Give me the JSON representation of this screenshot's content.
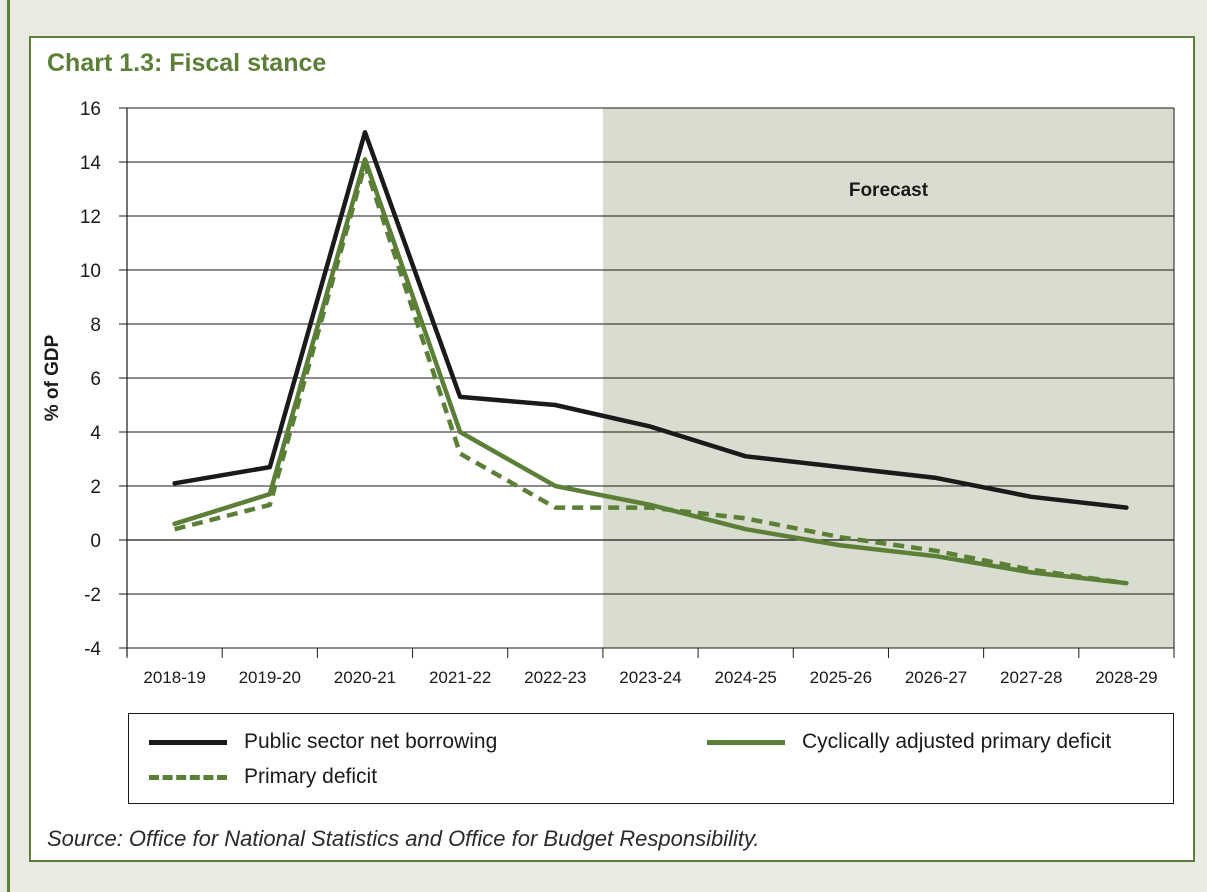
{
  "chart_data": {
    "type": "line",
    "title": "Chart 1.3: Fiscal stance",
    "ylabel": "% of GDP",
    "xlabel": "",
    "ylim": [
      -4,
      16
    ],
    "yticks": [
      "-4",
      "-2",
      "0",
      "2",
      "4",
      "6",
      "8",
      "10",
      "12",
      "14",
      "16"
    ],
    "categories": [
      "2018-19",
      "2019-20",
      "2020-21",
      "2021-22",
      "2022-23",
      "2023-24",
      "2024-25",
      "2025-26",
      "2026-27",
      "2027-28",
      "2028-29"
    ],
    "grid": true,
    "forecast_region": {
      "label": "Forecast",
      "from_category": "2023-24",
      "to_category": "2028-29",
      "color": "#d9ddcf"
    },
    "series": [
      {
        "name": "Public sector net borrowing",
        "color": "#1a1a1a",
        "dash": "solid",
        "values": [
          2.1,
          2.7,
          15.1,
          5.3,
          5.0,
          4.2,
          3.1,
          2.7,
          2.3,
          1.6,
          1.2
        ]
      },
      {
        "name": "Cyclically adjusted primary deficit",
        "color": "#5b7f36",
        "dash": "solid",
        "values": [
          0.6,
          1.7,
          14.1,
          4.0,
          2.0,
          1.3,
          0.4,
          -0.2,
          -0.6,
          -1.2,
          -1.6
        ]
      },
      {
        "name": "Primary deficit",
        "color": "#5b7f36",
        "dash": "dashed",
        "values": [
          0.4,
          1.3,
          13.9,
          3.2,
          1.2,
          1.2,
          0.8,
          0.1,
          -0.4,
          -1.1,
          -1.6
        ]
      }
    ],
    "legend_placement": "bottom"
  },
  "legend": {
    "psnb": "Public sector net borrowing",
    "capd": "Cyclically adjusted primary deficit",
    "pd": "Primary deficit"
  },
  "source": "Source: Office for National Statistics and Office for Budget Responsibility.",
  "colors": {
    "accent": "#5b7f36",
    "background": "#e9ebe3",
    "forecast": "#d9ddcf"
  }
}
